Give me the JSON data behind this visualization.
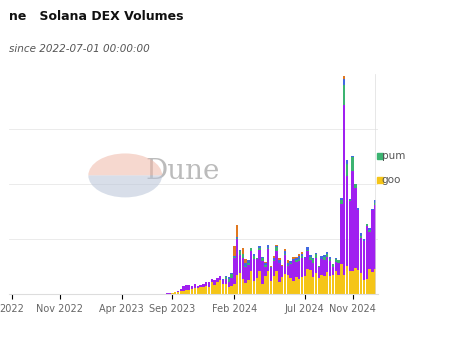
{
  "title": "Solana DEX Volumes",
  "subtitle": "since 2022-07-01 00:00:00",
  "title_prefix": "ne",
  "background_color": "#ffffff",
  "watermark_text": "Dune",
  "colors": {
    "yellow": "#f5c518",
    "purple": "#a020f0",
    "green": "#3cb371",
    "blue": "#4169e1",
    "orange": "#e07820",
    "teal": "#20b2aa"
  },
  "tick_labels": [
    "2022",
    "Nov 2022",
    "Apr 2023",
    "Sep 2023",
    "Feb 2024",
    "Jul 2024",
    "Nov 2024"
  ],
  "figsize": [
    4.5,
    3.38
  ],
  "dpi": 100
}
